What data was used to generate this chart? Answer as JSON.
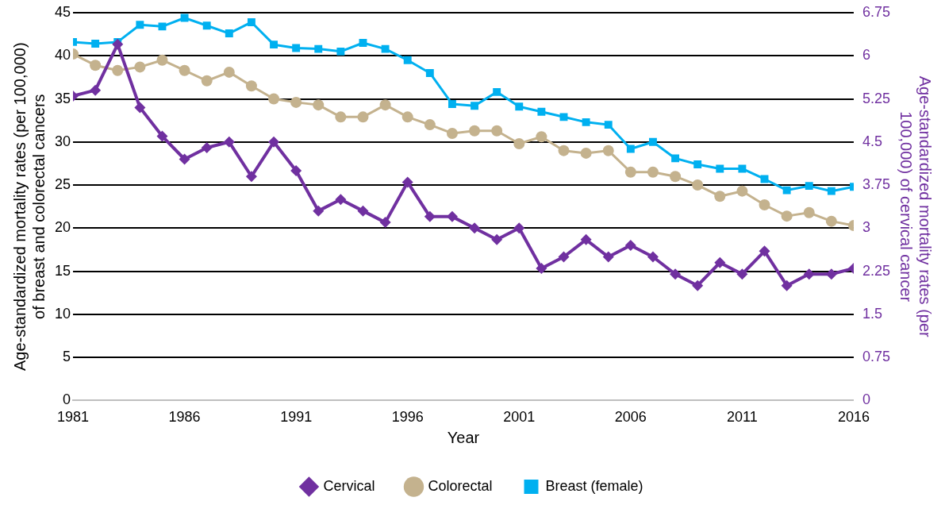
{
  "chart_data": {
    "type": "line",
    "xlabel": "Year",
    "ylabel": "Age-standardized mortality rates (per 100,000) of breast and colorectal cancers",
    "y2label": "Age-standardized mortality rates (per 100,000) of cervical cancer",
    "x": [
      1981,
      1982,
      1983,
      1984,
      1985,
      1986,
      1987,
      1988,
      1989,
      1990,
      1991,
      1992,
      1993,
      1994,
      1995,
      1996,
      1997,
      1998,
      1999,
      2000,
      2001,
      2002,
      2003,
      2004,
      2005,
      2006,
      2007,
      2008,
      2009,
      2010,
      2011,
      2012,
      2013,
      2014,
      2015,
      2016
    ],
    "xlim": [
      1981,
      2016
    ],
    "xticks": [
      1981,
      1986,
      1991,
      1996,
      2001,
      2006,
      2011,
      2016
    ],
    "ylim": [
      0,
      45
    ],
    "yticks": [
      0,
      5,
      10,
      15,
      20,
      25,
      30,
      35,
      40,
      45
    ],
    "y2lim": [
      0,
      6.75
    ],
    "y2ticks": [
      0,
      0.75,
      1.5,
      2.25,
      3,
      3.75,
      4.5,
      5.25,
      6,
      6.75
    ],
    "grid": "y",
    "legend": "bottom",
    "series": [
      {
        "name": "Breast (female)",
        "color": "#00b0f0",
        "marker": "square",
        "values": [
          41.6,
          41.4,
          41.6,
          43.6,
          43.4,
          44.4,
          43.5,
          42.6,
          43.9,
          41.3,
          40.9,
          40.8,
          40.5,
          41.5,
          40.8,
          39.5,
          38.0,
          34.4,
          34.2,
          35.8,
          34.1,
          33.5,
          32.9,
          32.3,
          32.0,
          29.2,
          30.0,
          28.1,
          27.4,
          26.9,
          26.9,
          25.7,
          24.4,
          24.9,
          24.3,
          24.8
        ]
      },
      {
        "name": "Colorectal",
        "color": "#c4b28e",
        "marker": "circle",
        "values": [
          40.2,
          38.9,
          38.3,
          38.7,
          39.5,
          38.3,
          37.1,
          38.1,
          36.5,
          35.0,
          34.6,
          34.3,
          32.9,
          32.9,
          34.3,
          32.9,
          32.0,
          31.0,
          31.3,
          31.3,
          29.8,
          30.6,
          29.0,
          28.7,
          29.0,
          26.5,
          26.5,
          26.0,
          25.0,
          23.7,
          24.3,
          22.7,
          21.4,
          21.8,
          20.8,
          20.3
        ]
      },
      {
        "name": "Cervical",
        "color": "#7030a0",
        "marker": "diamond",
        "axis": "y2",
        "values": [
          5.3,
          5.4,
          6.2,
          5.1,
          4.6,
          4.2,
          4.4,
          4.5,
          3.9,
          4.5,
          4.0,
          3.3,
          3.5,
          3.3,
          3.1,
          3.8,
          3.2,
          3.2,
          3.0,
          2.8,
          3.0,
          2.3,
          2.5,
          2.8,
          2.5,
          2.7,
          2.5,
          2.2,
          2.0,
          2.4,
          2.2,
          2.6,
          2.0,
          2.2,
          2.2,
          2.3
        ]
      }
    ]
  }
}
